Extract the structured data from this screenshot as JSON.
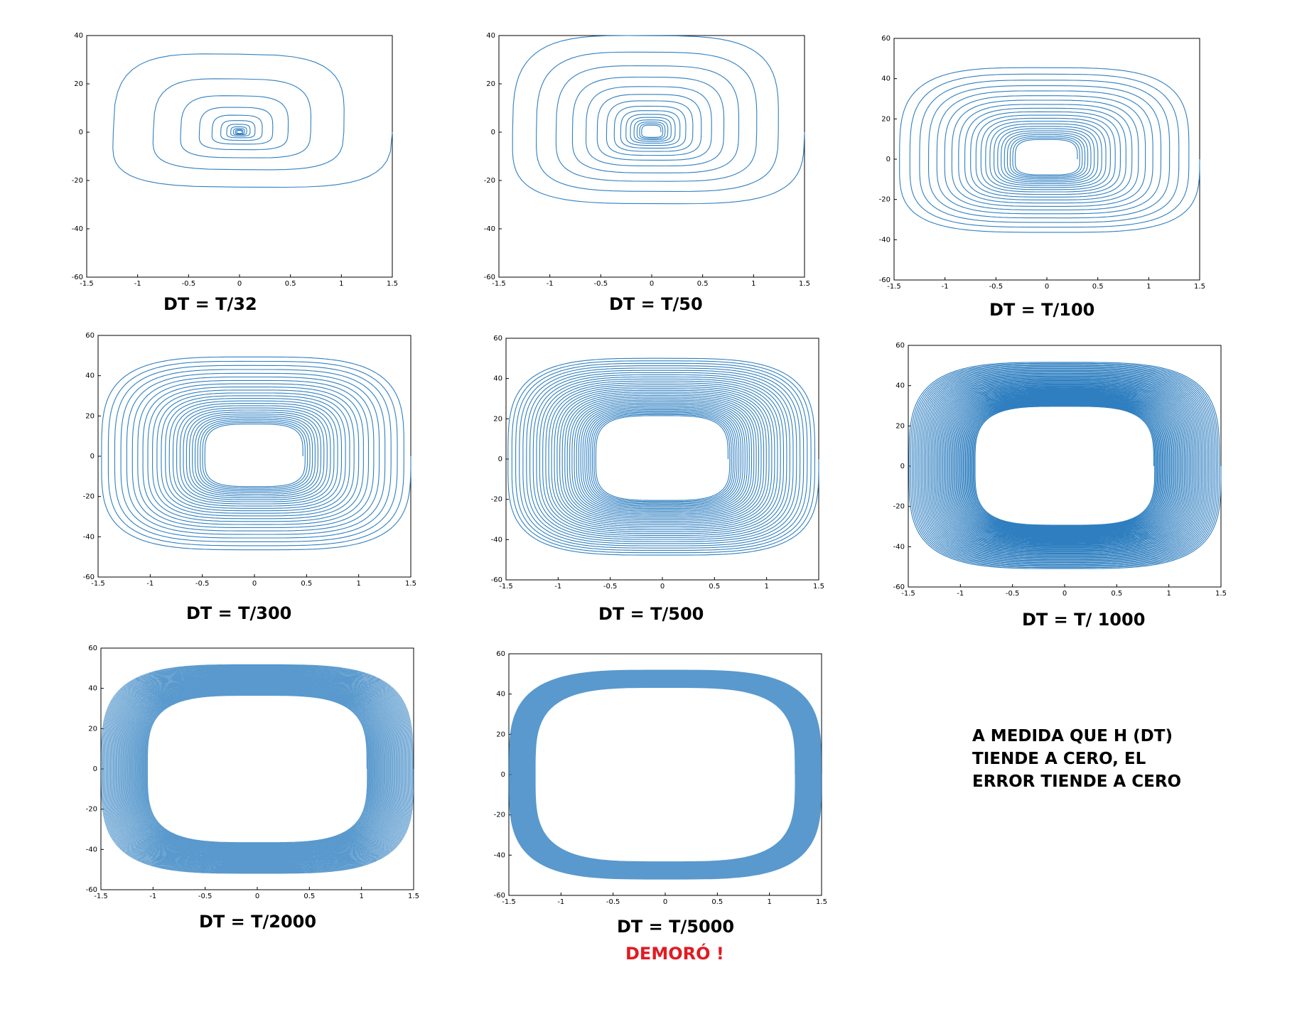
{
  "colors": {
    "series": "#2f7fc0",
    "warning": "#e11b22",
    "axis": "#000000"
  },
  "chart_data": [
    {
      "type": "line",
      "caption": "DT = T/32",
      "xlim": [
        -1.5,
        1.5
      ],
      "ylim": [
        -60,
        40
      ],
      "xticks": [
        "-1.5",
        "-1",
        "-0.5",
        "0",
        "0.5",
        "1",
        "1.5"
      ],
      "yticks": [
        "40",
        "20",
        "0",
        "-20",
        "-40",
        "-60"
      ],
      "series": [
        {
          "values": "spiral phase-plane trajectory, x in [-1.5, 1.5], y from about -43 to 25, ~11 visible loops converging to (0,0)"
        }
      ]
    },
    {
      "type": "line",
      "caption": "DT = T/50",
      "xlim": [
        -1.5,
        1.5
      ],
      "ylim": [
        -60,
        40
      ],
      "xticks": [
        "-1.5",
        "-1",
        "-0.5",
        "0",
        "0.5",
        "1",
        "1.5"
      ],
      "yticks": [
        "40",
        "20",
        "0",
        "-20",
        "-40",
        "-60"
      ],
      "series": [
        {
          "values": "spiral phase-plane trajectory, y from about -46 to 31, ~15 visible loops"
        }
      ]
    },
    {
      "type": "line",
      "caption": "DT = T/100",
      "xlim": [
        -1.5,
        1.5
      ],
      "ylim": [
        -60,
        60
      ],
      "xticks": [
        "-1.5",
        "-1",
        "-0.5",
        "0",
        "0.5",
        "1",
        "1.5"
      ],
      "yticks": [
        "60",
        "40",
        "20",
        "0",
        "-20",
        "-40",
        "-60"
      ],
      "series": [
        {
          "values": "spiral phase-plane trajectory, y from about -48 to 37, ~22 visible loops"
        }
      ]
    },
    {
      "type": "line",
      "caption": "DT = T/300",
      "xlim": [
        -1.5,
        1.5
      ],
      "ylim": [
        -60,
        60
      ],
      "xticks": [
        "-1.5",
        "-1",
        "-0.5",
        "0",
        "0.5",
        "1",
        "1.5"
      ],
      "yticks": [
        "60",
        "40",
        "20",
        "0",
        "-20",
        "-40",
        "-60"
      ],
      "series": [
        {
          "values": "spiral phase-plane trajectory, y from about -51 to 47, inner hole near |x|<0.47"
        }
      ]
    },
    {
      "type": "line",
      "caption": "DT = T/500",
      "xlim": [
        -1.5,
        1.5
      ],
      "ylim": [
        -60,
        60
      ],
      "xticks": [
        "-1.5",
        "-1",
        "-0.5",
        "0",
        "0.5",
        "1",
        "1.5"
      ],
      "yticks": [
        "60",
        "40",
        "20",
        "0",
        "-20",
        "-40",
        "-60"
      ],
      "series": [
        {
          "values": "spiral phase-plane trajectory, y from about -51 to 48, inner hole near |x|<0.62"
        }
      ]
    },
    {
      "type": "line",
      "caption": "DT = T/ 1000",
      "xlim": [
        -1.5,
        1.5
      ],
      "ylim": [
        -60,
        60
      ],
      "xticks": [
        "-1.5",
        "-1",
        "-0.5",
        "0",
        "0.5",
        "1",
        "1.5"
      ],
      "yticks": [
        "60",
        "40",
        "20",
        "0",
        "-20",
        "-40",
        "-60"
      ],
      "series": [
        {
          "values": "spiral phase-plane trajectory, y from about -52 to 51, inner hole near |x|<0.85"
        }
      ]
    },
    {
      "type": "line",
      "caption": "DT = T/2000",
      "xlim": [
        -1.5,
        1.5
      ],
      "ylim": [
        -60,
        60
      ],
      "xticks": [
        "-1.5",
        "-1",
        "-0.5",
        "0",
        "0.5",
        "1",
        "1.5"
      ],
      "yticks": [
        "60",
        "40",
        "20",
        "0",
        "-20",
        "-40",
        "-60"
      ],
      "series": [
        {
          "values": "spiral phase-plane trajectory, y from about -52 to 52, inner hole near |x|<1.05"
        }
      ]
    },
    {
      "type": "line",
      "caption": "DT = T/5000",
      "xlim": [
        -1.5,
        1.5
      ],
      "ylim": [
        -60,
        60
      ],
      "xticks": [
        "-1.5",
        "-1",
        "-0.5",
        "0",
        "0.5",
        "1",
        "1.5"
      ],
      "yticks": [
        "60",
        "40",
        "20",
        "0",
        "-20",
        "-40",
        "-60"
      ],
      "series": [
        {
          "values": "spiral phase-plane trajectory, y from about -52 to 52, inner hole near |x|<1.25"
        }
      ]
    }
  ],
  "curves": [
    {
      "rOuter": 1.0,
      "rInner": 0.015,
      "turns": 11,
      "n": 48,
      "yUp": 25,
      "yDn": 43
    },
    {
      "rOuter": 1.0,
      "rInner": 0.06,
      "turns": 15,
      "n": 70,
      "yUp": 31,
      "yDn": 46
    },
    {
      "rOuter": 1.0,
      "rInner": 0.2,
      "turns": 22,
      "n": 300,
      "yUp": 37,
      "yDn": 48
    },
    {
      "rOuter": 1.0,
      "rInner": 0.31,
      "turns": 26,
      "n": 400,
      "yUp": 47,
      "yDn": 51
    },
    {
      "rOuter": 1.0,
      "rInner": 0.42,
      "turns": 34,
      "n": 400,
      "yUp": 48,
      "yDn": 51
    },
    {
      "rOuter": 1.0,
      "rInner": 0.57,
      "turns": 55,
      "n": 400,
      "yUp": 51,
      "yDn": 52
    },
    {
      "rOuter": 1.0,
      "rInner": 0.7,
      "turns": 90,
      "n": 400,
      "yUp": 52,
      "yDn": 52
    },
    {
      "rOuter": 1.0,
      "rInner": 0.83,
      "turns": 180,
      "n": 300,
      "yUp": 52,
      "yDn": 52
    }
  ],
  "note": {
    "line1": "A MEDIDA QUE H (DT)",
    "line2": "TIENDE A CERO, EL",
    "line3": "ERROR TIENDE A CERO"
  },
  "warning": "DEMORÓ !"
}
